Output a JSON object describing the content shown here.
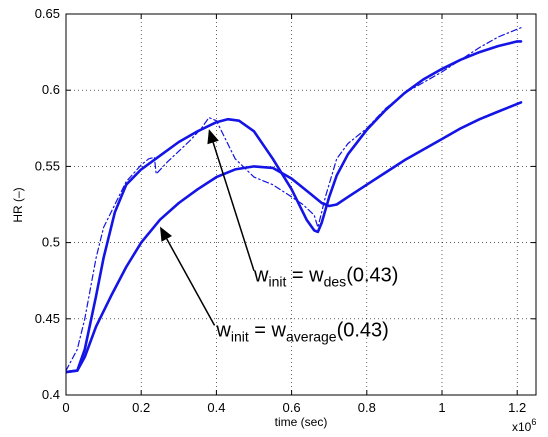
{
  "chart_data": {
    "type": "line",
    "xlabel": "time (sec)",
    "ylabel": "HR (–)",
    "x_multiplier_label": "x10",
    "x_multiplier_exp": "6",
    "xlim": [
      0,
      1.25
    ],
    "ylim": [
      0.4,
      0.65
    ],
    "xticks": [
      "0",
      "0.2",
      "0.4",
      "0.6",
      "0.8",
      "1",
      "1.2"
    ],
    "yticks": [
      "0.4",
      "0.45",
      "0.5",
      "0.55",
      "0.6",
      "0.65"
    ],
    "grid": true,
    "line_color": "#1414e6",
    "series": [
      {
        "style": "dash-dot",
        "x": [
          0,
          0.03,
          0.05,
          0.08,
          0.1,
          0.13,
          0.16,
          0.2,
          0.22,
          0.235,
          0.24,
          0.27,
          0.3,
          0.33,
          0.36,
          0.38,
          0.4,
          0.42,
          0.45,
          0.5,
          0.55,
          0.6,
          0.63,
          0.66,
          0.67,
          0.69,
          0.72,
          0.75,
          0.78,
          0.8,
          0.85,
          0.9,
          0.95,
          1.0,
          1.05,
          1.1,
          1.15,
          1.18,
          1.2,
          1.21
        ],
        "y": [
          0.416,
          0.43,
          0.45,
          0.49,
          0.51,
          0.525,
          0.54,
          0.551,
          0.555,
          0.556,
          0.545,
          0.553,
          0.56,
          0.567,
          0.575,
          0.582,
          0.58,
          0.57,
          0.555,
          0.543,
          0.538,
          0.53,
          0.525,
          0.518,
          0.51,
          0.53,
          0.555,
          0.565,
          0.571,
          0.575,
          0.588,
          0.598,
          0.605,
          0.612,
          0.62,
          0.628,
          0.635,
          0.638,
          0.64,
          0.641
        ]
      },
      {
        "style": "solid",
        "x": [
          0,
          0.03,
          0.05,
          0.08,
          0.1,
          0.13,
          0.16,
          0.2,
          0.25,
          0.3,
          0.35,
          0.4,
          0.43,
          0.46,
          0.5,
          0.55,
          0.6,
          0.64,
          0.66,
          0.67,
          0.68,
          0.7,
          0.72,
          0.75,
          0.8,
          0.85,
          0.9,
          0.95,
          1.0,
          1.05,
          1.1,
          1.15,
          1.2,
          1.21
        ],
        "y": [
          0.415,
          0.416,
          0.43,
          0.465,
          0.49,
          0.52,
          0.538,
          0.548,
          0.557,
          0.566,
          0.573,
          0.579,
          0.581,
          0.58,
          0.573,
          0.555,
          0.535,
          0.515,
          0.508,
          0.507,
          0.513,
          0.53,
          0.544,
          0.558,
          0.574,
          0.587,
          0.598,
          0.607,
          0.614,
          0.62,
          0.625,
          0.629,
          0.632,
          0.632
        ]
      },
      {
        "style": "solid",
        "x": [
          0,
          0.03,
          0.05,
          0.08,
          0.12,
          0.16,
          0.2,
          0.25,
          0.3,
          0.35,
          0.4,
          0.45,
          0.5,
          0.55,
          0.6,
          0.65,
          0.68,
          0.7,
          0.72,
          0.75,
          0.8,
          0.85,
          0.9,
          0.95,
          1.0,
          1.05,
          1.1,
          1.15,
          1.2,
          1.21
        ],
        "y": [
          0.415,
          0.416,
          0.425,
          0.445,
          0.465,
          0.484,
          0.5,
          0.515,
          0.526,
          0.535,
          0.543,
          0.548,
          0.55,
          0.549,
          0.542,
          0.532,
          0.526,
          0.524,
          0.525,
          0.53,
          0.538,
          0.546,
          0.554,
          0.561,
          0.568,
          0.575,
          0.581,
          0.586,
          0.591,
          0.592
        ]
      }
    ],
    "annotations": [
      {
        "lhs": "w",
        "lhs_sub": "init",
        "eq": " = ",
        "rhs": "w",
        "rhs_sub": "des",
        "tail": "(0.43)",
        "arrow_from": [
          0.5,
          0.4815
        ],
        "arrow_to": [
          0.38,
          0.5745
        ],
        "text_at": [
          0.5,
          0.4745
        ]
      },
      {
        "lhs": "w",
        "lhs_sub": "init",
        "eq": " = ",
        "rhs": "w",
        "rhs_sub": "average",
        "tail": "(0.43)",
        "arrow_from": [
          0.395,
          0.4457
        ],
        "arrow_to": [
          0.25,
          0.5105
        ],
        "text_at": [
          0.4,
          0.4385
        ]
      }
    ]
  }
}
